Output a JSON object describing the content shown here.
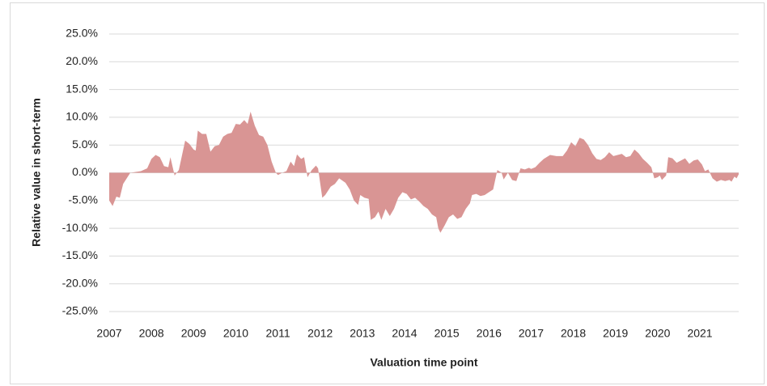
{
  "chart_data": {
    "type": "area",
    "x_label": "Valuation time point",
    "y_label": "Relative value in short-term",
    "color": "#d99594",
    "grid": true,
    "xlim": [
      2007,
      2021.92
    ],
    "xticks": [
      2007,
      2008,
      2009,
      2010,
      2011,
      2012,
      2013,
      2014,
      2015,
      2016,
      2017,
      2018,
      2019,
      2020,
      2021
    ],
    "ylim": [
      -25,
      25
    ],
    "yticks": [
      {
        "value": 25,
        "label": "25.0%"
      },
      {
        "value": 20,
        "label": "20.0%"
      },
      {
        "value": 15,
        "label": "15.0%"
      },
      {
        "value": 10,
        "label": "10.0%"
      },
      {
        "value": 5,
        "label": "5.0%"
      },
      {
        "value": 0,
        "label": "0.0%"
      },
      {
        "value": -5,
        "label": "-5.0%"
      },
      {
        "value": -10,
        "label": "-10.0%"
      },
      {
        "value": -15,
        "label": "-15.0%"
      },
      {
        "value": -20,
        "label": "-20.0%"
      },
      {
        "value": -25,
        "label": "-25.0%"
      }
    ],
    "x": [
      2007.0,
      2007.08,
      2007.17,
      2007.25,
      2007.33,
      2007.5,
      2007.75,
      2007.9,
      2008.0,
      2008.1,
      2008.2,
      2008.3,
      2008.4,
      2008.45,
      2008.55,
      2008.65,
      2008.8,
      2008.9,
      2009.0,
      2009.05,
      2009.1,
      2009.2,
      2009.3,
      2009.4,
      2009.5,
      2009.6,
      2009.7,
      2009.8,
      2009.9,
      2010.0,
      2010.1,
      2010.2,
      2010.28,
      2010.35,
      2010.45,
      2010.55,
      2010.65,
      2010.75,
      2010.85,
      2010.95,
      2011.0,
      2011.1,
      2011.2,
      2011.3,
      2011.38,
      2011.45,
      2011.55,
      2011.62,
      2011.7,
      2011.8,
      2011.9,
      2011.95,
      2012.05,
      2012.12,
      2012.25,
      2012.35,
      2012.45,
      2012.6,
      2012.7,
      2012.8,
      2012.9,
      2012.95,
      2013.05,
      2013.15,
      2013.2,
      2013.3,
      2013.38,
      2013.45,
      2013.55,
      2013.65,
      2013.75,
      2013.85,
      2013.95,
      2014.05,
      2014.15,
      2014.25,
      2014.35,
      2014.45,
      2014.55,
      2014.65,
      2014.75,
      2014.8,
      2014.85,
      2014.95,
      2015.05,
      2015.15,
      2015.25,
      2015.35,
      2015.45,
      2015.55,
      2015.6,
      2015.7,
      2015.8,
      2015.9,
      2016.0,
      2016.1,
      2016.2,
      2016.3,
      2016.35,
      2016.45,
      2016.55,
      2016.65,
      2016.75,
      2016.85,
      2016.95,
      2017.0,
      2017.1,
      2017.2,
      2017.3,
      2017.45,
      2017.6,
      2017.75,
      2017.85,
      2017.95,
      2018.05,
      2018.15,
      2018.25,
      2018.35,
      2018.45,
      2018.55,
      2018.65,
      2018.75,
      2018.85,
      2018.95,
      2019.05,
      2019.15,
      2019.25,
      2019.35,
      2019.45,
      2019.55,
      2019.65,
      2019.75,
      2019.85,
      2019.92,
      2020.0,
      2020.05,
      2020.1,
      2020.2,
      2020.25,
      2020.35,
      2020.45,
      2020.55,
      2020.65,
      2020.75,
      2020.85,
      2020.95,
      2021.05,
      2021.12,
      2021.2,
      2021.3,
      2021.4,
      2021.5,
      2021.6,
      2021.7,
      2021.75,
      2021.82,
      2021.87,
      2021.92
    ],
    "values": [
      -5,
      -6,
      -4.3,
      -4.5,
      -2,
      0,
      0.3,
      0.8,
      2.5,
      3.2,
      2.8,
      1.2,
      1,
      2.8,
      -0.5,
      0.5,
      5.8,
      5.2,
      4.2,
      4,
      7.6,
      7,
      7,
      3.8,
      4.8,
      5,
      6.5,
      7,
      7.2,
      8.8,
      8.7,
      9.5,
      8.8,
      11,
      8.5,
      6.8,
      6.5,
      5,
      2,
      0,
      -0.4,
      0,
      0.3,
      2,
      1.2,
      3.3,
      2.5,
      2.8,
      -0.8,
      0.5,
      1.3,
      0.8,
      -4.5,
      -4,
      -2.5,
      -2,
      -1,
      -1.8,
      -3,
      -5,
      -5.8,
      -4,
      -4.5,
      -4.7,
      -8.5,
      -8,
      -7,
      -8.5,
      -6.5,
      -7.8,
      -6.5,
      -4.5,
      -3.5,
      -3.8,
      -4.8,
      -4.5,
      -5.2,
      -6,
      -6.5,
      -7.5,
      -8,
      -10,
      -10.8,
      -9.5,
      -8,
      -7.5,
      -8.3,
      -8,
      -6.5,
      -5.5,
      -4,
      -3.8,
      -4.2,
      -4,
      -3.5,
      -3,
      0.5,
      0,
      -1.2,
      0,
      -1.3,
      -1.5,
      0.8,
      0.6,
      0.9,
      0.7,
      1,
      1.8,
      2.5,
      3.2,
      3,
      3,
      4,
      5.5,
      4.8,
      6.3,
      6,
      5,
      3.5,
      2.5,
      2.3,
      2.8,
      3.7,
      3,
      3.2,
      3.4,
      2.8,
      3,
      4.2,
      3.5,
      2.5,
      1.8,
      1,
      -1,
      -0.8,
      -0.5,
      -1.3,
      -0.5,
      2.8,
      2.6,
      1.8,
      2.2,
      2.6,
      1.6,
      2.2,
      2.4,
      1.5,
      0.3,
      0.6,
      -1,
      -1.6,
      -1.3,
      -1.5,
      -1.3,
      -1.6,
      -0.7,
      -1,
      -0.3
    ]
  }
}
